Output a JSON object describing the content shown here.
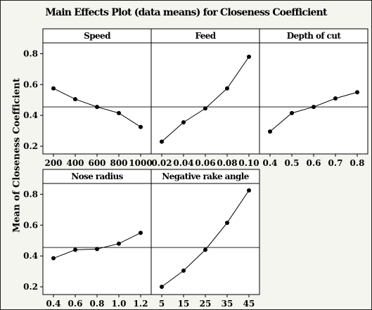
{
  "chart_data": {
    "type": "line",
    "title": "Main Effects Plot (data means) for Closeness Coefficient",
    "ylabel": "Mean of Closeness Coefficient",
    "ylim": [
      0.15,
      0.87
    ],
    "yticks": [
      "0.2",
      "0.4",
      "0.6",
      "0.8"
    ],
    "yticks_values": [
      0.2,
      0.4,
      0.6,
      0.8
    ],
    "reference_line": 0.455,
    "marker_color": "#000000",
    "line_color": "#000000",
    "panel_background": "#ffffff",
    "figure_background": "#f5f5f0",
    "panels": [
      {
        "title": "Speed",
        "x_labels": [
          "200",
          "400",
          "600",
          "800",
          "1000"
        ],
        "values": [
          0.575,
          0.505,
          0.455,
          0.415,
          0.325
        ]
      },
      {
        "title": "Feed",
        "x_labels": [
          "0.02",
          "0.04",
          "0.06",
          "0.08",
          "0.10"
        ],
        "values": [
          0.23,
          0.355,
          0.445,
          0.575,
          0.78
        ]
      },
      {
        "title": "Depth of cut",
        "x_labels": [
          "0.4",
          "0.5",
          "0.6",
          "0.7",
          "0.8"
        ],
        "values": [
          0.295,
          0.415,
          0.455,
          0.51,
          0.55
        ]
      },
      {
        "title": "Nose radius",
        "x_labels": [
          "0.4",
          "0.6",
          "0.8",
          "1.0",
          "1.2"
        ],
        "values": [
          0.385,
          0.44,
          0.445,
          0.48,
          0.55
        ]
      },
      {
        "title": "Negative rake angle",
        "x_labels": [
          "5",
          "15",
          "25",
          "35",
          "45"
        ],
        "values": [
          0.2,
          0.305,
          0.44,
          0.615,
          0.825
        ]
      }
    ]
  }
}
